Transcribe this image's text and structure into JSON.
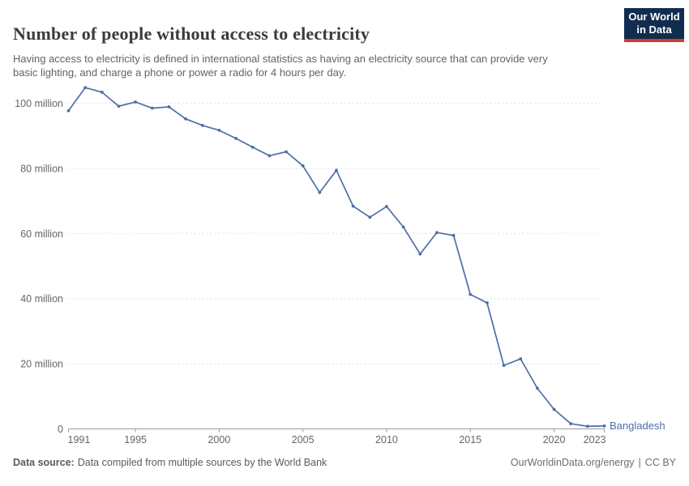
{
  "header": {
    "title": "Number of people without access to electricity",
    "subtitle": "Having access to electricity is defined in international statistics as having an electricity source that can provide very basic lighting, and charge a phone or power a radio for 4 hours per day.",
    "logo": {
      "line1": "Our World",
      "line2": "in Data"
    }
  },
  "chart_data": {
    "type": "line",
    "title": "Number of people without access to electricity",
    "unit": "million people",
    "x": [
      1991,
      1992,
      1993,
      1994,
      1995,
      1996,
      1997,
      1998,
      1999,
      2000,
      2001,
      2002,
      2003,
      2004,
      2005,
      2006,
      2007,
      2008,
      2009,
      2010,
      2011,
      2012,
      2013,
      2014,
      2015,
      2016,
      2017,
      2018,
      2019,
      2020,
      2021,
      2022,
      2023
    ],
    "series": [
      {
        "name": "Bangladesh",
        "values": [
          97.7,
          104.8,
          103.4,
          99.1,
          100.4,
          98.5,
          98.9,
          95.2,
          93.2,
          91.7,
          89.2,
          86.5,
          83.9,
          85.1,
          80.8,
          72.6,
          79.4,
          68.4,
          65.0,
          68.3,
          62.0,
          53.7,
          60.3,
          59.4,
          41.3,
          38.7,
          19.5,
          21.5,
          12.5,
          6.0,
          1.6,
          0.8,
          0.9
        ]
      }
    ],
    "xlim": [
      1991,
      2023
    ],
    "ylim": [
      0,
      107
    ],
    "grid": true,
    "legend_position": "end-of-line-label",
    "x_ticks": [
      1991,
      1995,
      2000,
      2005,
      2010,
      2015,
      2020,
      2023
    ],
    "y_ticks": [
      {
        "value": 0,
        "label": "0"
      },
      {
        "value": 20,
        "label": "20 million"
      },
      {
        "value": 40,
        "label": "40 million"
      },
      {
        "value": 60,
        "label": "60 million"
      },
      {
        "value": 80,
        "label": "80 million"
      },
      {
        "value": 100,
        "label": "100 million"
      }
    ],
    "line_color": "#4c6fa8",
    "grid_color": "#dcdcdc",
    "axis_line_color": "#9a9a9a",
    "axis_text_color": "#666666"
  },
  "footer": {
    "source_label": "Data source:",
    "source_text": "Data compiled from multiple sources by the World Bank",
    "link": "OurWorldinData.org/energy",
    "separator": "|",
    "license": "CC BY"
  }
}
